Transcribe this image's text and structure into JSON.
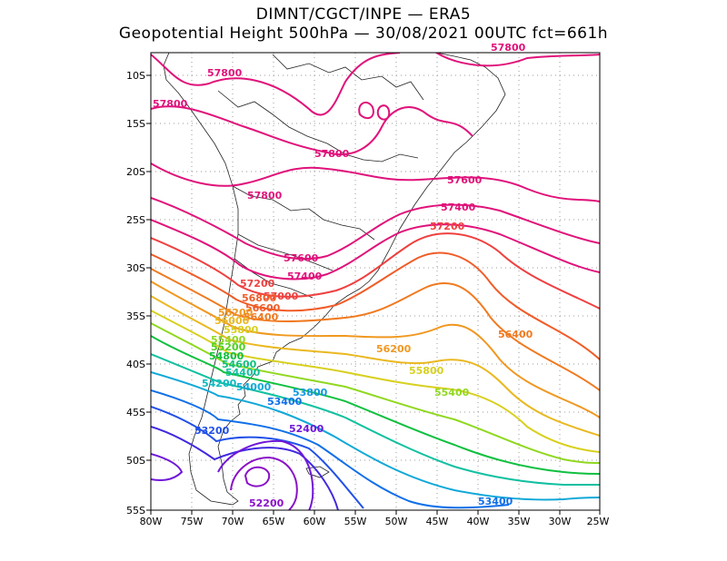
{
  "title": {
    "line1": "DIMNT/CGCT/INPE  —  ERA5",
    "line2": "Geopotential Height 500hPa —  30/08/2021 00UTC fct=661h"
  },
  "map": {
    "lon_range": [
      -80,
      -25
    ],
    "lat_range": [
      -55,
      -7
    ],
    "x_ticks": [
      "80W",
      "75W",
      "70W",
      "65W",
      "60W",
      "55W",
      "50W",
      "45W",
      "40W",
      "35W",
      "30W",
      "25W"
    ],
    "y_ticks": [
      "10S",
      "15S",
      "20S",
      "25S",
      "30S",
      "35S",
      "40S",
      "45S",
      "50S",
      "55S"
    ],
    "grid": "dotted",
    "contour_interval": 200,
    "contour_labels": [
      {
        "text": "57800",
        "color": "#e0127a"
      },
      {
        "text": "57800",
        "color": "#e0127a"
      },
      {
        "text": "57800",
        "color": "#e0127a"
      },
      {
        "text": "57800",
        "color": "#e0127a"
      },
      {
        "text": "57800",
        "color": "#e0127a"
      },
      {
        "text": "57600",
        "color": "#e0127a"
      },
      {
        "text": "57600",
        "color": "#e0127a"
      },
      {
        "text": "57400",
        "color": "#e0127a"
      },
      {
        "text": "57400",
        "color": "#e0127a"
      },
      {
        "text": "57200",
        "color": "#ef4040"
      },
      {
        "text": "57200",
        "color": "#ef4040"
      },
      {
        "text": "57000",
        "color": "#ef4040"
      },
      {
        "text": "56800",
        "color": "#f05c28"
      },
      {
        "text": "56600",
        "color": "#f05c28"
      },
      {
        "text": "56400",
        "color": "#f07a20"
      },
      {
        "text": "56400",
        "color": "#f07a20"
      },
      {
        "text": "56200",
        "color": "#f09820"
      },
      {
        "text": "56200",
        "color": "#f09820"
      },
      {
        "text": "56000",
        "color": "#eab820"
      },
      {
        "text": "55800",
        "color": "#d8d020"
      },
      {
        "text": "55800",
        "color": "#d8d020"
      },
      {
        "text": "55400",
        "color": "#90d820"
      },
      {
        "text": "55400",
        "color": "#90d820"
      },
      {
        "text": "55200",
        "color": "#50d020"
      },
      {
        "text": "54800",
        "color": "#10c040"
      },
      {
        "text": "54600",
        "color": "#10c080"
      },
      {
        "text": "54400",
        "color": "#10c0a0"
      },
      {
        "text": "54200",
        "color": "#10b8c0"
      },
      {
        "text": "54000",
        "color": "#10a8d8"
      },
      {
        "text": "53800",
        "color": "#1098e0"
      },
      {
        "text": "53400",
        "color": "#1070e8"
      },
      {
        "text": "53400",
        "color": "#1070e8"
      },
      {
        "text": "53200",
        "color": "#2050e8"
      },
      {
        "text": "52400",
        "color": "#7018d8"
      },
      {
        "text": "52200",
        "color": "#8a10c8"
      }
    ]
  }
}
